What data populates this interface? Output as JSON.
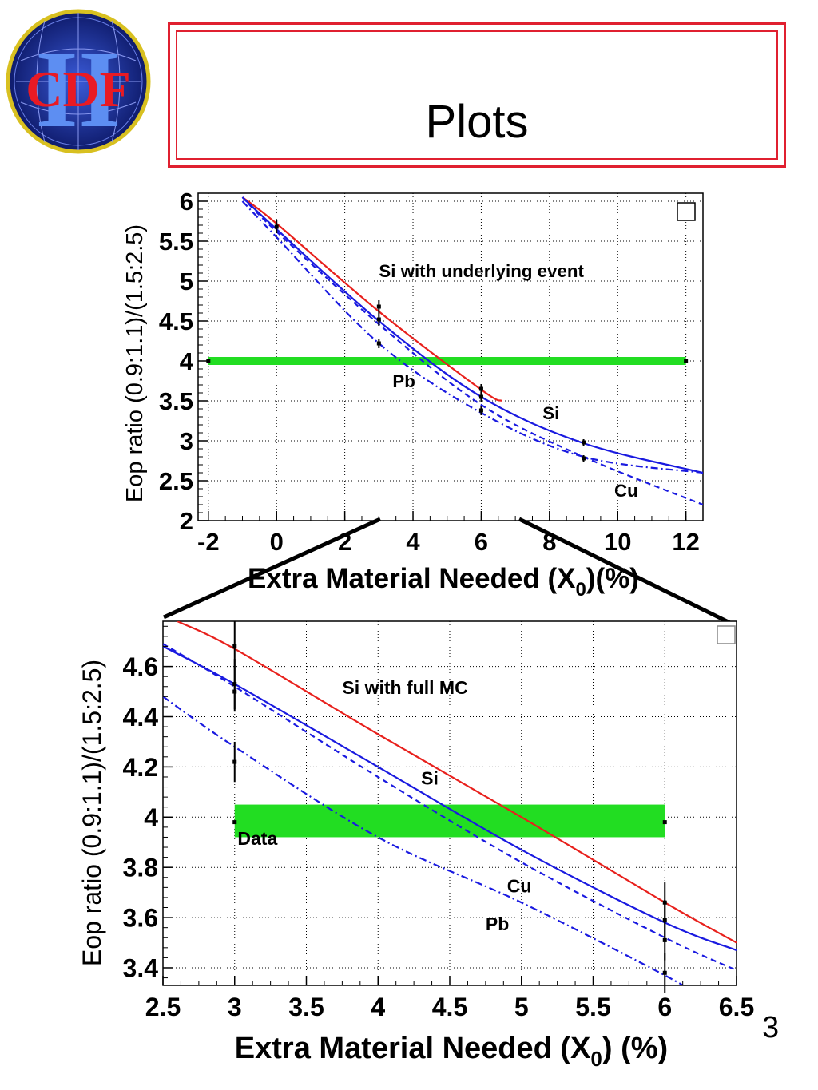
{
  "logo": {
    "text": "CDF",
    "roman": "II"
  },
  "slide": {
    "title": "Plots",
    "page_number": "3"
  },
  "colors": {
    "red_curve": "#e8201c",
    "blue_curve": "#1a1ae0",
    "data_band": "#22dd22",
    "title_border": "#e02030"
  },
  "chart_data": [
    {
      "type": "line",
      "ylabel": "Eop ratio (0.9:1.1)/(1.5:2.5)",
      "xlabel_main": "Extra Material Needed (X",
      "xlabel_sub": "0",
      "xlabel_tail": ")(%)",
      "xlim": [
        -2.3,
        12.5
      ],
      "ylim": [
        2,
        6.1
      ],
      "xticks": [
        -2,
        0,
        2,
        4,
        6,
        8,
        10,
        12
      ],
      "yticks": [
        2,
        2.5,
        3,
        3.5,
        4,
        4.5,
        5,
        5.5,
        6
      ],
      "grid": true,
      "annotations": [
        {
          "text": "Si with underlying event",
          "x": 3.0,
          "y": 5.05
        },
        {
          "text": "Pb",
          "x": 3.4,
          "y": 3.67
        },
        {
          "text": "Si",
          "x": 7.8,
          "y": 3.27
        },
        {
          "text": "Cu",
          "x": 9.9,
          "y": 2.3
        }
      ],
      "band": {
        "x": [
          -2,
          12
        ],
        "y": [
          3.95,
          4.05
        ]
      },
      "series": [
        {
          "name": "Si with underlying event",
          "style": "solid-red",
          "x": [
            -1,
            0,
            3,
            6,
            6.6
          ],
          "y": [
            6.05,
            5.72,
            4.62,
            3.64,
            3.5
          ]
        },
        {
          "name": "Si",
          "style": "solid-blue",
          "x": [
            -1,
            0,
            3,
            6,
            9,
            12.5
          ],
          "y": [
            6.05,
            5.65,
            4.5,
            3.55,
            2.97,
            2.6
          ]
        },
        {
          "name": "Cu",
          "style": "dashed-blue",
          "x": [
            -1,
            0,
            3,
            6,
            9,
            12.5
          ],
          "y": [
            6.05,
            5.62,
            4.46,
            3.45,
            2.8,
            2.2
          ]
        },
        {
          "name": "Pb",
          "style": "dashdot-blue",
          "x": [
            -1,
            0,
            3,
            6,
            9,
            12.5
          ],
          "y": [
            6.0,
            5.55,
            4.22,
            3.35,
            2.8,
            2.6
          ]
        }
      ],
      "points": [
        {
          "x": 0,
          "y": 5.68,
          "err": 0.08
        },
        {
          "x": 3,
          "y": 4.68,
          "err": 0.08
        },
        {
          "x": 3,
          "y": 4.52,
          "err": 0.08
        },
        {
          "x": 3,
          "y": 4.22,
          "err": 0.06
        },
        {
          "x": 6,
          "y": 3.65,
          "err": 0.06
        },
        {
          "x": 6,
          "y": 3.55,
          "err": 0.06
        },
        {
          "x": 6,
          "y": 3.38,
          "err": 0.06
        },
        {
          "x": 9,
          "y": 2.98,
          "err": 0.04
        },
        {
          "x": 9,
          "y": 2.78,
          "err": 0.04
        },
        {
          "x": -2,
          "y": 4.0,
          "err": 0.0
        },
        {
          "x": 12,
          "y": 4.0,
          "err": 0.0
        }
      ]
    },
    {
      "type": "line",
      "ylabel": "Eop ratio (0.9:1.1)/(1.5:2.5)",
      "xlabel_main": "Extra Material Needed (X",
      "xlabel_sub": "0",
      "xlabel_tail": ") (%)",
      "xlim": [
        2.5,
        6.5
      ],
      "ylim": [
        3.33,
        4.78
      ],
      "xticks": [
        2.5,
        3,
        3.5,
        4,
        4.5,
        5,
        5.5,
        6,
        6.5
      ],
      "yticks": [
        3.4,
        3.6,
        3.8,
        4,
        4.2,
        4.4,
        4.6
      ],
      "ytick_labels": [
        "3.4",
        "3.6",
        "3.8",
        "4",
        "4.2",
        "4.4",
        "4.6"
      ],
      "grid": true,
      "annotations": [
        {
          "text": "Si with full MC",
          "x": 3.75,
          "y": 4.49
        },
        {
          "text": "Si",
          "x": 4.3,
          "y": 4.13
        },
        {
          "text": "Data",
          "x": 3.02,
          "y": 3.89
        },
        {
          "text": "Cu",
          "x": 4.9,
          "y": 3.7
        },
        {
          "text": "Pb",
          "x": 4.75,
          "y": 3.55
        }
      ],
      "band": {
        "x": [
          3,
          6
        ],
        "y": [
          3.92,
          4.05
        ]
      },
      "series": [
        {
          "name": "Si with full MC",
          "style": "solid-red",
          "x": [
            2.6,
            3,
            4,
            5,
            6,
            6.5
          ],
          "y": [
            4.78,
            4.67,
            4.33,
            4.0,
            3.66,
            3.5
          ]
        },
        {
          "name": "Si",
          "style": "solid-blue",
          "x": [
            2.5,
            3,
            4,
            5,
            6,
            6.5
          ],
          "y": [
            4.68,
            4.53,
            4.2,
            3.87,
            3.58,
            3.47
          ]
        },
        {
          "name": "Cu",
          "style": "dashed-blue",
          "x": [
            2.5,
            3,
            4,
            5,
            6,
            6.5
          ],
          "y": [
            4.69,
            4.52,
            4.16,
            3.82,
            3.52,
            3.39
          ]
        },
        {
          "name": "Pb",
          "style": "dashdot-blue",
          "x": [
            2.5,
            3,
            4,
            5,
            6,
            6.2
          ],
          "y": [
            4.48,
            4.28,
            3.92,
            3.66,
            3.37,
            3.3
          ]
        }
      ],
      "points": [
        {
          "x": 3,
          "y": 4.68,
          "err": 0.1
        },
        {
          "x": 3,
          "y": 4.53,
          "err": 0.1
        },
        {
          "x": 3,
          "y": 4.5,
          "err": 0.08
        },
        {
          "x": 3,
          "y": 4.22,
          "err": 0.08
        },
        {
          "x": 6,
          "y": 3.66,
          "err": 0.08
        },
        {
          "x": 6,
          "y": 3.59,
          "err": 0.08
        },
        {
          "x": 6,
          "y": 3.51,
          "err": 0.08
        },
        {
          "x": 6,
          "y": 3.38,
          "err": 0.08
        },
        {
          "x": 3,
          "y": 3.98,
          "err": 0.0
        },
        {
          "x": 6,
          "y": 3.98,
          "err": 0.0
        }
      ]
    }
  ]
}
